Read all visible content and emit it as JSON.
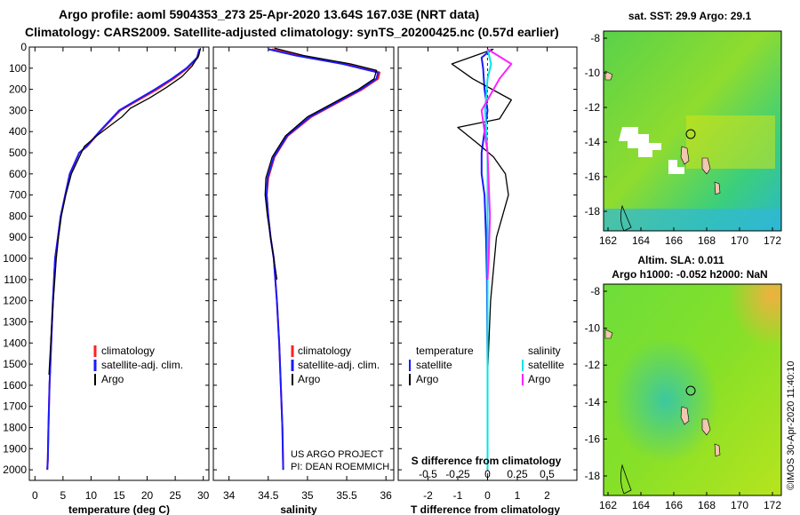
{
  "title": {
    "line1": "Argo profile: aoml 5904353_273 25-Apr-2020 13.64S 167.03E (NRT data)",
    "line2": "Climatology: CARS2009. Satellite-adjusted climatology: synTS_20200425.nc (0.57d earlier)"
  },
  "colors": {
    "climatology": "#ff2020",
    "satellite": "#1a1aff",
    "argo": "#000000",
    "sal_satellite": "#00e5e5",
    "sal_argo": "#ff22ff"
  },
  "chart_data": [
    {
      "type": "line",
      "name": "temperature-profile",
      "xlabel": "temperature (deg C)",
      "ylabel": "",
      "xlim": [
        -1,
        31
      ],
      "ylim": [
        2050,
        0
      ],
      "xticks": [
        0,
        5,
        10,
        15,
        20,
        25,
        30
      ],
      "yticks": [
        0,
        100,
        200,
        300,
        400,
        500,
        600,
        700,
        800,
        900,
        1000,
        1100,
        1200,
        1300,
        1400,
        1500,
        1600,
        1700,
        1800,
        1900,
        2000
      ],
      "legend": [
        "climatology",
        "satellite-adj. clim.",
        "Argo"
      ],
      "series": [
        {
          "name": "climatology",
          "color_key": "climatology",
          "x": [
            29.4,
            29.0,
            27.2,
            24.7,
            21.8,
            18.5,
            15.2,
            11.6,
            9.3,
            7.9,
            6.2,
            5.4,
            4.6,
            4.1,
            3.6,
            3.2,
            2.9,
            2.6,
            2.4,
            2.3,
            2.2
          ],
          "y": [
            10,
            50,
            100,
            150,
            200,
            250,
            300,
            400,
            470,
            500,
            600,
            700,
            800,
            900,
            1000,
            1200,
            1400,
            1600,
            1800,
            1950,
            2000
          ]
        },
        {
          "name": "satellite-adj. clim.",
          "color_key": "satellite",
          "x": [
            29.3,
            28.9,
            27.0,
            24.4,
            21.4,
            18.2,
            15.0,
            11.5,
            9.2,
            7.9,
            6.2,
            5.4,
            4.6,
            4.1,
            3.6,
            3.2,
            2.9,
            2.6,
            2.4,
            2.3,
            2.2
          ],
          "y": [
            10,
            50,
            100,
            150,
            200,
            250,
            300,
            400,
            470,
            500,
            600,
            700,
            800,
            900,
            1000,
            1200,
            1400,
            1600,
            1800,
            1950,
            2000
          ]
        },
        {
          "name": "Argo",
          "color_key": "argo",
          "x": [
            29.5,
            29.2,
            28.0,
            26.2,
            23.5,
            20.5,
            17.0,
            15.5,
            13.5,
            11.0,
            8.8,
            7.9,
            6.5,
            5.5,
            4.7,
            4.2,
            3.8,
            3.4,
            3.0,
            2.7,
            2.5
          ],
          "y": [
            5,
            40,
            90,
            140,
            190,
            240,
            290,
            330,
            370,
            420,
            470,
            520,
            600,
            700,
            800,
            900,
            1000,
            1150,
            1300,
            1450,
            1550
          ]
        }
      ]
    },
    {
      "type": "line",
      "name": "salinity-profile",
      "xlabel": "salinity",
      "ylabel": "",
      "xlim": [
        33.8,
        36.1
      ],
      "ylim": [
        2050,
        0
      ],
      "xticks": [
        34,
        34.5,
        35,
        35.5,
        36
      ],
      "legend": [
        "climatology",
        "satellite-adj. clim.",
        "Argo"
      ],
      "annotation": [
        "US ARGO PROJECT",
        "PI: DEAN ROEMMICH"
      ],
      "series": [
        {
          "name": "climatology",
          "color_key": "climatology",
          "x": [
            34.55,
            34.9,
            35.5,
            35.92,
            35.9,
            35.7,
            35.4,
            35.05,
            34.75,
            34.58,
            34.5,
            34.48,
            34.5,
            34.53,
            34.57,
            34.61,
            34.64,
            34.66,
            34.68,
            34.69
          ],
          "y": [
            10,
            40,
            80,
            120,
            150,
            200,
            260,
            330,
            420,
            520,
            620,
            700,
            800,
            900,
            1000,
            1200,
            1400,
            1600,
            1800,
            2000
          ]
        },
        {
          "name": "satellite-adj. clim.",
          "color_key": "satellite",
          "x": [
            34.5,
            34.85,
            35.45,
            35.9,
            35.88,
            35.68,
            35.38,
            35.03,
            34.74,
            34.57,
            34.49,
            34.48,
            34.5,
            34.53,
            34.57,
            34.61,
            34.64,
            34.66,
            34.68,
            34.69
          ],
          "y": [
            10,
            40,
            80,
            120,
            150,
            200,
            260,
            330,
            420,
            520,
            620,
            700,
            800,
            900,
            1000,
            1200,
            1400,
            1600,
            1800,
            2000
          ]
        },
        {
          "name": "Argo",
          "color_key": "argo",
          "x": [
            34.58,
            34.95,
            35.55,
            35.88,
            35.85,
            35.65,
            35.35,
            35.0,
            34.72,
            34.55,
            34.47,
            34.46,
            34.49,
            34.53,
            34.57,
            34.61
          ],
          "y": [
            5,
            40,
            80,
            110,
            150,
            200,
            260,
            330,
            420,
            520,
            620,
            700,
            800,
            900,
            1000,
            1100
          ]
        }
      ]
    },
    {
      "type": "line",
      "name": "difference-profile",
      "xlabel": "T difference from climatology",
      "top_xlabel": "S difference from climatology",
      "ylabel": "",
      "xlim": [
        -3.0,
        3.0
      ],
      "ylim": [
        2050,
        0
      ],
      "xticks": [
        -2,
        -1,
        0,
        1,
        2
      ],
      "top_xticks": [
        "-0.5",
        "-0.25",
        "0",
        "0.25",
        "0.5"
      ],
      "top_xlim": [
        -0.75,
        0.75
      ],
      "legend_left": {
        "title": "temperature",
        "items": [
          "satellite",
          "Argo"
        ]
      },
      "legend_right": {
        "title": "salinity",
        "items": [
          "satellite",
          "Argo"
        ]
      },
      "series": [
        {
          "name": "T satellite",
          "color_key": "satellite",
          "axis": "bottom",
          "x": [
            0.15,
            -0.2,
            -0.15,
            -0.1,
            0.0,
            -0.1,
            -0.2,
            -0.2,
            -0.1,
            -0.05,
            -0.02,
            0.0,
            0.0
          ],
          "y": [
            10,
            50,
            100,
            200,
            300,
            400,
            500,
            600,
            700,
            900,
            1100,
            1500,
            2000
          ]
        },
        {
          "name": "T Argo",
          "color_key": "argo",
          "axis": "bottom",
          "x": [
            0.2,
            -1.2,
            -0.5,
            0.8,
            0.4,
            -1.0,
            -0.3,
            0.2,
            0.6,
            0.7,
            0.3,
            0.1,
            0.0
          ],
          "y": [
            10,
            80,
            150,
            250,
            340,
            380,
            460,
            520,
            600,
            700,
            900,
            1200,
            1550
          ]
        },
        {
          "name": "S satellite",
          "color_key": "sal_satellite",
          "axis": "top",
          "x": [
            0.0,
            0.03,
            0.0,
            -0.02,
            0.0,
            0.0,
            0.0,
            0.0
          ],
          "y": [
            10,
            80,
            150,
            300,
            500,
            900,
            1500,
            2000
          ]
        },
        {
          "name": "S Argo",
          "color_key": "sal_argo",
          "axis": "top",
          "x": [
            0.0,
            0.2,
            0.1,
            -0.05,
            0.0,
            0.02,
            0.01,
            0.0
          ],
          "y": [
            10,
            80,
            150,
            300,
            500,
            800,
            1000,
            1100
          ]
        }
      ]
    }
  ],
  "maps": {
    "sst": {
      "title": "sat. SST: 29.9 Argo: 29.1",
      "yticks": [
        "-8",
        "-10",
        "-12",
        "-14",
        "-16",
        "-18"
      ],
      "xticks": [
        "162",
        "164",
        "166",
        "168",
        "170",
        "172"
      ]
    },
    "sla": {
      "title1": "Altim. SLA: 0.011",
      "title2": "Argo h1000: -0.052 h2000: NaN",
      "yticks": [
        "-8",
        "-10",
        "-12",
        "-14",
        "-16",
        "-18"
      ],
      "xticks": [
        "162",
        "164",
        "166",
        "168",
        "170",
        "172"
      ]
    }
  },
  "watermark": "©IMOS 30-Apr-2020 11:40:10"
}
